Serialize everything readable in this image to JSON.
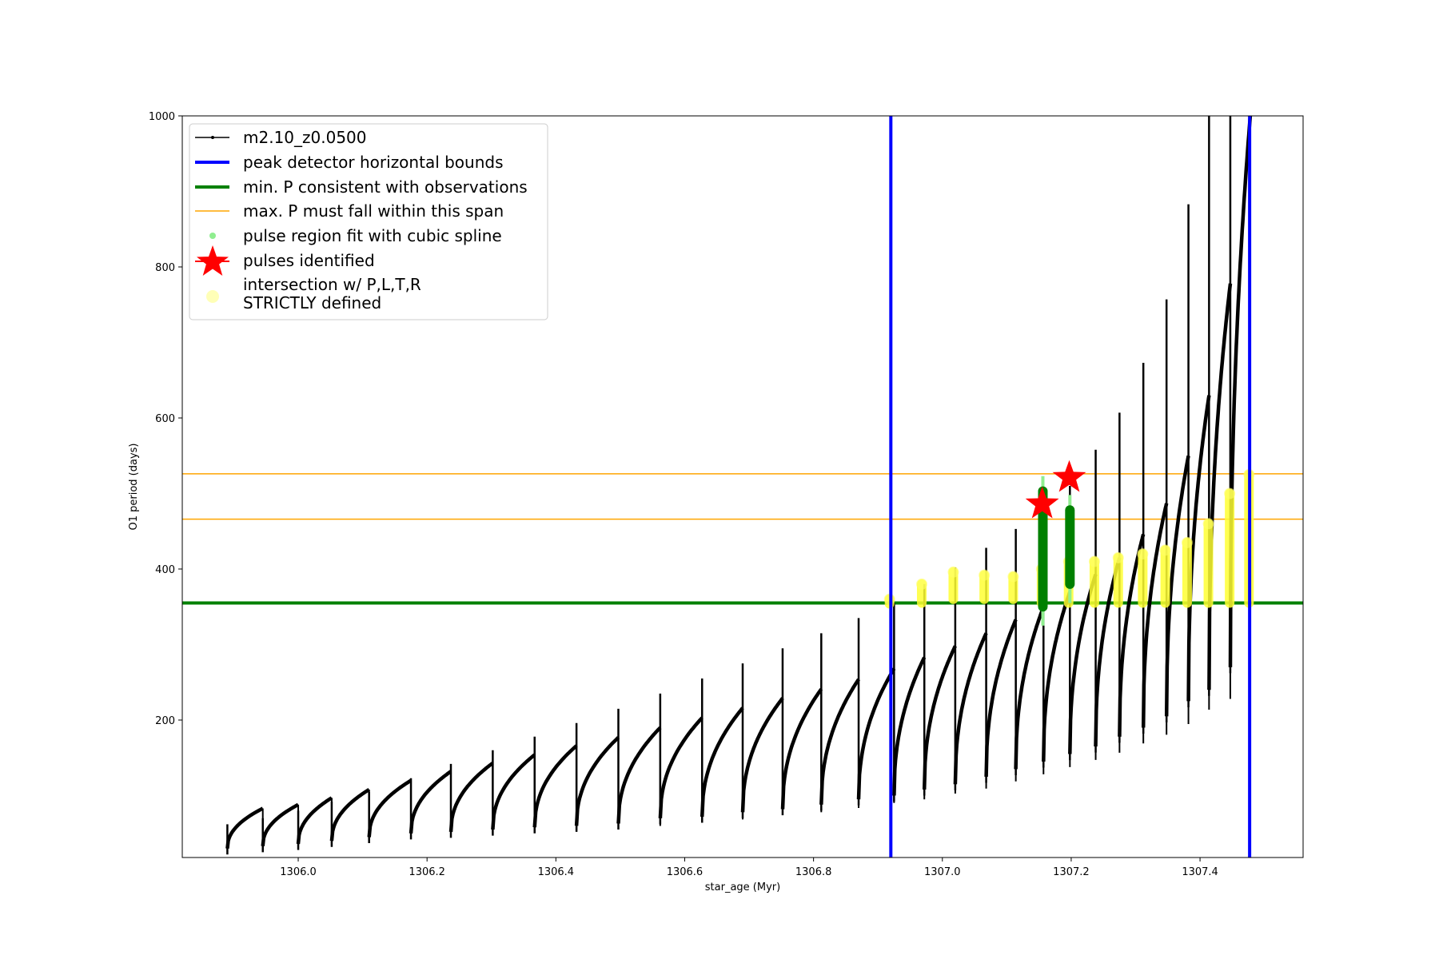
{
  "chart_data": {
    "type": "line",
    "title": "",
    "xlabel": "star_age (Myr)",
    "ylabel": "O1 period (days)",
    "xlim": [
      1305.82,
      1307.56
    ],
    "ylim": [
      18,
      1000
    ],
    "x_ticks": [
      "1306.0",
      "1306.2",
      "1306.4",
      "1306.6",
      "1306.8",
      "1307.0",
      "1307.2",
      "1307.4"
    ],
    "x_tick_values": [
      1306.0,
      1306.2,
      1306.4,
      1306.6,
      1306.8,
      1307.0,
      1307.2,
      1307.4
    ],
    "y_ticks": [
      "200",
      "400",
      "600",
      "800",
      "1000"
    ],
    "y_tick_values": [
      200,
      400,
      600,
      800,
      1000
    ],
    "grid": false,
    "legend_position": "top-left",
    "legend": [
      {
        "label": "m2.10_z0.0500",
        "color": "#000000",
        "marker": "line-dot"
      },
      {
        "label": "peak detector horizontal bounds",
        "color": "#0000ff",
        "marker": "thick-line"
      },
      {
        "label": "min. P consistent with observations",
        "color": "#008000",
        "marker": "thick-line"
      },
      {
        "label": "max. P must fall within this span",
        "color": "#ffa500",
        "marker": "thin-line"
      },
      {
        "label": "pulse region fit with cubic spline",
        "color": "#90ee90",
        "marker": "dot"
      },
      {
        "label": "pulses identified",
        "color": "#ff0000",
        "marker": "star"
      },
      {
        "label_lines": [
          "intersection w/ P,L,T,R",
          "STRICTLY defined"
        ],
        "color": "#ffff99",
        "marker": "big-dot"
      }
    ],
    "series_track": {
      "name": "m2.10_z0.0500",
      "color": "#000000",
      "pulses": [
        {
          "t0": 1305.89,
          "t1": 1305.945,
          "pmin": 30,
          "pmax": 83,
          "spike": 62
        },
        {
          "t0": 1305.945,
          "t1": 1306.0,
          "pmin": 33,
          "pmax": 88,
          "spike": 70
        },
        {
          "t0": 1306.0,
          "t1": 1306.052,
          "pmin": 36,
          "pmax": 97,
          "spike": 80
        },
        {
          "t0": 1306.052,
          "t1": 1306.11,
          "pmin": 40,
          "pmax": 108,
          "spike": 92
        },
        {
          "t0": 1306.11,
          "t1": 1306.175,
          "pmin": 45,
          "pmax": 120,
          "spike": 105
        },
        {
          "t0": 1306.175,
          "t1": 1306.237,
          "pmin": 50,
          "pmax": 132,
          "spike": 123
        },
        {
          "t0": 1306.237,
          "t1": 1306.302,
          "pmin": 52,
          "pmax": 143,
          "spike": 142
        },
        {
          "t0": 1306.302,
          "t1": 1306.367,
          "pmin": 55,
          "pmax": 154,
          "spike": 160
        },
        {
          "t0": 1306.367,
          "t1": 1306.432,
          "pmin": 58,
          "pmax": 166,
          "spike": 178
        },
        {
          "t0": 1306.432,
          "t1": 1306.497,
          "pmin": 60,
          "pmax": 177,
          "spike": 196
        },
        {
          "t0": 1306.497,
          "t1": 1306.562,
          "pmin": 63,
          "pmax": 190,
          "spike": 215
        },
        {
          "t0": 1306.562,
          "t1": 1306.627,
          "pmin": 70,
          "pmax": 203,
          "spike": 235
        },
        {
          "t0": 1306.627,
          "t1": 1306.69,
          "pmin": 72,
          "pmax": 216,
          "spike": 255
        },
        {
          "t0": 1306.69,
          "t1": 1306.752,
          "pmin": 78,
          "pmax": 229,
          "spike": 275
        },
        {
          "t0": 1306.752,
          "t1": 1306.812,
          "pmin": 82,
          "pmax": 241,
          "spike": 295
        },
        {
          "t0": 1306.812,
          "t1": 1306.87,
          "pmin": 88,
          "pmax": 254,
          "spike": 315
        },
        {
          "t0": 1306.87,
          "t1": 1306.925,
          "pmin": 95,
          "pmax": 268,
          "spike": 335
        },
        {
          "t0": 1306.925,
          "t1": 1306.972,
          "pmin": 100,
          "pmax": 283,
          "spike": 355
        },
        {
          "t0": 1306.972,
          "t1": 1307.02,
          "pmin": 108,
          "pmax": 298,
          "spike": 380
        },
        {
          "t0": 1307.02,
          "t1": 1307.068,
          "pmin": 115,
          "pmax": 315,
          "spike": 402
        },
        {
          "t0": 1307.068,
          "t1": 1307.114,
          "pmin": 125,
          "pmax": 333,
          "spike": 428
        },
        {
          "t0": 1307.114,
          "t1": 1307.157,
          "pmin": 135,
          "pmax": 350,
          "spike": 453
        },
        {
          "t0": 1307.157,
          "t1": 1307.198,
          "pmin": 145,
          "pmax": 370,
          "spike": 480
        },
        {
          "t0": 1307.198,
          "t1": 1307.238,
          "pmin": 155,
          "pmax": 393,
          "spike": 510
        },
        {
          "t0": 1307.238,
          "t1": 1307.275,
          "pmin": 165,
          "pmax": 415,
          "spike": 558
        },
        {
          "t0": 1307.275,
          "t1": 1307.312,
          "pmin": 178,
          "pmax": 446,
          "spike": 607
        },
        {
          "t0": 1307.312,
          "t1": 1307.348,
          "pmin": 190,
          "pmax": 487,
          "spike": 673
        },
        {
          "t0": 1307.348,
          "t1": 1307.382,
          "pmin": 205,
          "pmax": 550,
          "spike": 757
        },
        {
          "t0": 1307.382,
          "t1": 1307.414,
          "pmin": 225,
          "pmax": 630,
          "spike": 883
        },
        {
          "t0": 1307.414,
          "t1": 1307.447,
          "pmin": 240,
          "pmax": 778,
          "spike": 1000
        },
        {
          "t0": 1307.447,
          "t1": 1307.478,
          "pmin": 270,
          "pmax": 1000,
          "spike": 1000
        }
      ]
    },
    "vertical_lines": {
      "name": "peak detector horizontal bounds",
      "color": "#0000ff",
      "x": [
        1306.92,
        1307.477
      ]
    },
    "min_period_line": {
      "name": "min. P consistent with observations",
      "color": "#008000",
      "y": 355
    },
    "max_period_span": {
      "name": "max. P must fall within this span",
      "color": "#ffa500",
      "y": [
        466,
        526
      ]
    },
    "pulse_spline_regions": [
      {
        "x": 1307.156,
        "y": [
          325,
          523
        ]
      },
      {
        "x": 1307.198,
        "y": [
          355,
          498
        ]
      }
    ],
    "pulses_identified": [
      {
        "x": 1307.155,
        "y": 486
      },
      {
        "x": 1307.197,
        "y": 521
      }
    ],
    "intersections": [
      {
        "x": 1306.918,
        "y": [
          354,
          360
        ]
      },
      {
        "x": 1306.968,
        "y": [
          355,
          380
        ]
      },
      {
        "x": 1307.017,
        "y": [
          360,
          396
        ]
      },
      {
        "x": 1307.065,
        "y": [
          360,
          392
        ]
      },
      {
        "x": 1307.11,
        "y": [
          360,
          390
        ]
      },
      {
        "x": 1307.154,
        "y": [
          355,
          400
        ]
      },
      {
        "x": 1307.196,
        "y": [
          355,
          410
        ]
      },
      {
        "x": 1307.236,
        "y": [
          355,
          410
        ]
      },
      {
        "x": 1307.273,
        "y": [
          355,
          415
        ]
      },
      {
        "x": 1307.311,
        "y": [
          355,
          420
        ]
      },
      {
        "x": 1307.346,
        "y": [
          355,
          425
        ]
      },
      {
        "x": 1307.38,
        "y": [
          355,
          435
        ]
      },
      {
        "x": 1307.413,
        "y": [
          355,
          460
        ]
      },
      {
        "x": 1307.446,
        "y": [
          355,
          500
        ]
      },
      {
        "x": 1307.476,
        "y": [
          355,
          525
        ]
      }
    ]
  }
}
